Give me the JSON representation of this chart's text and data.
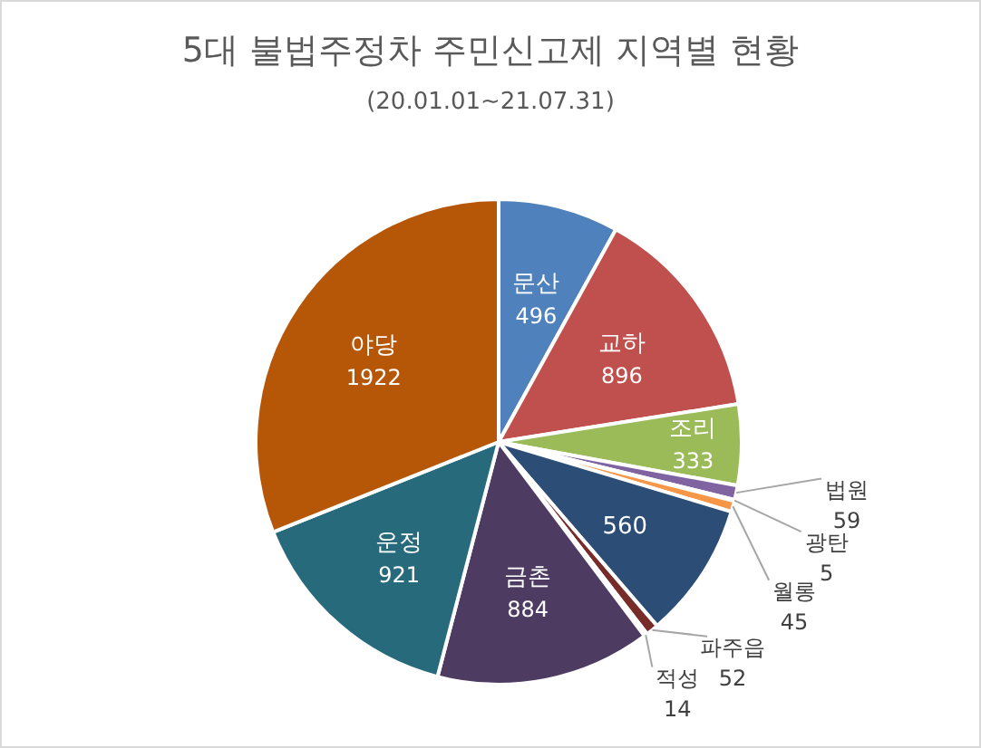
{
  "chart_data": {
    "type": "pie",
    "title": "5대 불법주정차 주민신고제 지역별 현황",
    "subtitle": "(20.01.01~21.07.31)",
    "categories": [
      "문산",
      "교하",
      "조리",
      "법원",
      "광탄",
      "월롱",
      null,
      "파주읍",
      "적성",
      "금촌",
      "운정",
      "야당"
    ],
    "values": [
      496,
      896,
      333,
      59,
      5,
      45,
      560,
      52,
      14,
      884,
      921,
      1922
    ],
    "colors": [
      "#4f81bd",
      "#c0504d",
      "#9bbb59",
      "#8064a2",
      "#4bacc6",
      "#f79646",
      "#2c4d75",
      "#772c2a",
      "#d9d9d9",
      "#4d3b62",
      "#276a7c",
      "#b65708"
    ],
    "data_labels": true
  }
}
